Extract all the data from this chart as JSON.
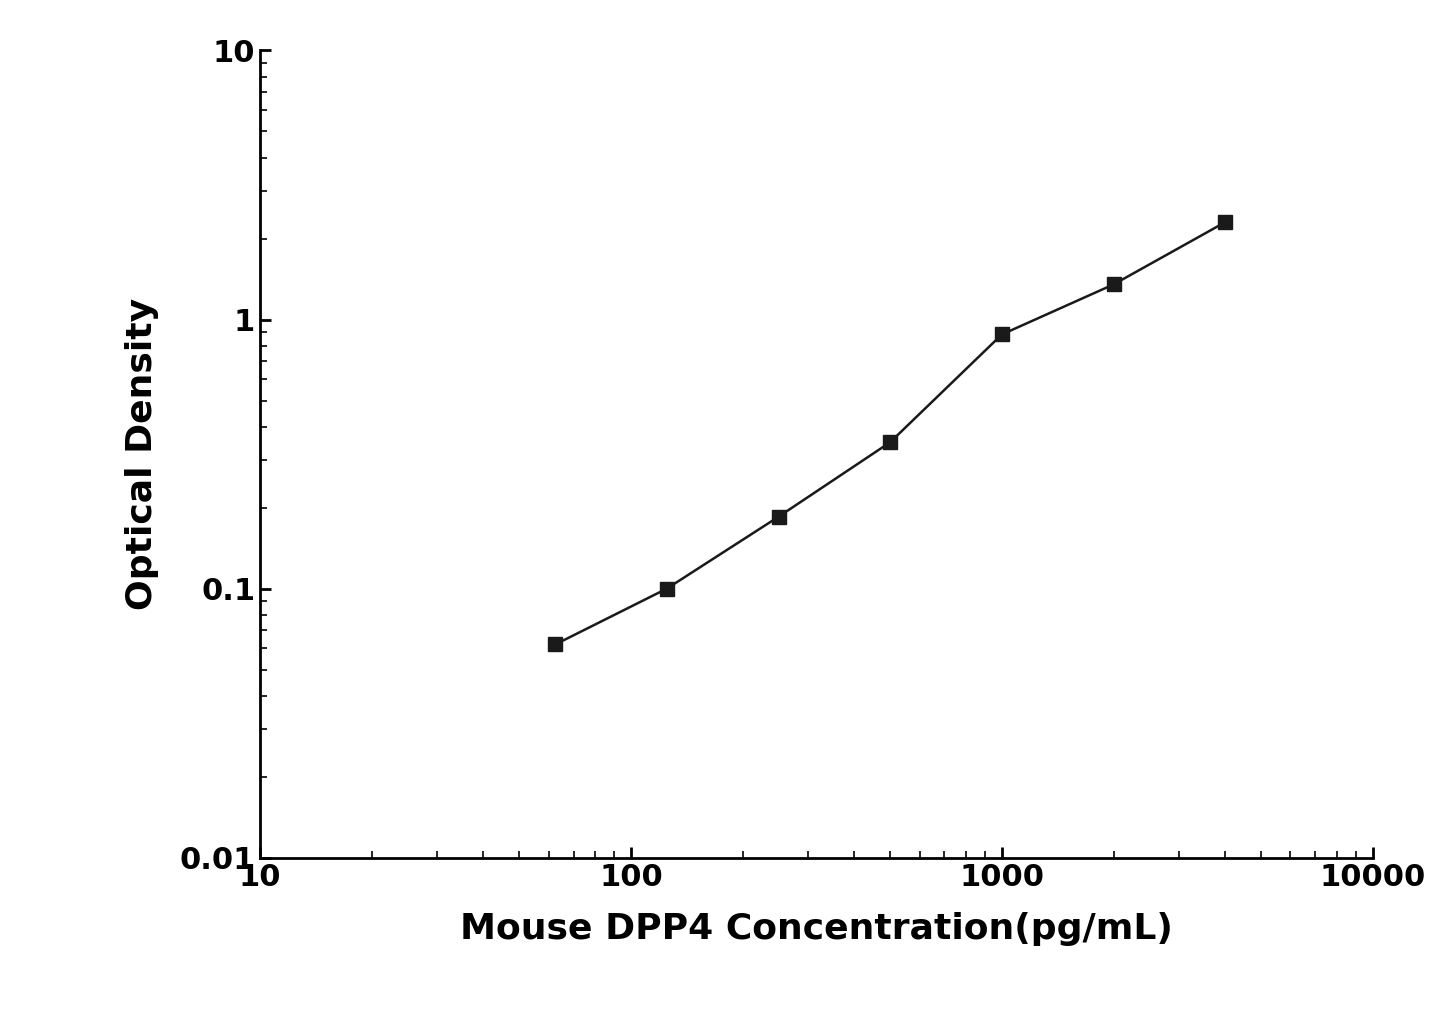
{
  "x": [
    62.5,
    125,
    250,
    500,
    1000,
    2000,
    4000
  ],
  "y": [
    0.062,
    0.1,
    0.185,
    0.35,
    0.88,
    1.35,
    2.3
  ],
  "xlabel": "Mouse DPP4 Concentration(pg/mL)",
  "ylabel": "Optical Density",
  "xlim": [
    10,
    10000
  ],
  "ylim": [
    0.01,
    10
  ],
  "line_color": "#1a1a1a",
  "marker_color": "#1a1a1a",
  "marker": "s",
  "marker_size": 10,
  "linewidth": 1.8,
  "xlabel_fontsize": 26,
  "ylabel_fontsize": 26,
  "tick_fontsize": 22,
  "background_color": "#ffffff"
}
